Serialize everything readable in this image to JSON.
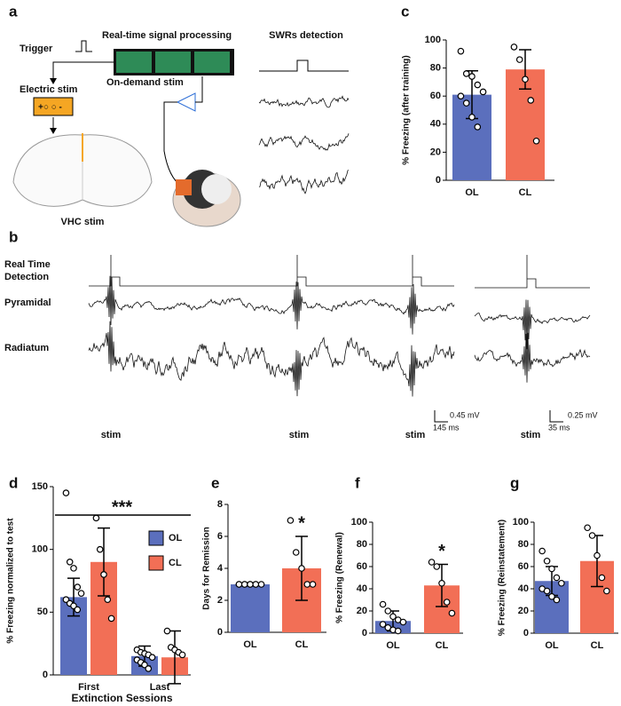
{
  "panel_a": {
    "label": "a",
    "trigger": "Trigger",
    "processing": "Real-time signal processing",
    "detection": "SWRs detection",
    "electric_stim": "Electric stim",
    "on_demand": "On-demand stim",
    "vhc": "VHC stim"
  },
  "panel_b": {
    "label": "b",
    "detection": [
      "Real Time",
      "Detection"
    ],
    "pyramidal": "Pyramidal",
    "radiatum": "Radiatum",
    "stim": [
      "stim",
      "stim",
      "stim",
      "stim"
    ],
    "scale_main": {
      "voltage": "0.45 mV",
      "time": "145 ms"
    },
    "scale_inset": {
      "voltage": "0.25 mV",
      "time": "35 ms"
    }
  },
  "chart_data": [
    {
      "type": "bar",
      "panel": "c",
      "ylabel": "% Freezing (after training)",
      "categories": [
        "OL",
        "CL"
      ],
      "colors": [
        "#5b6fbd",
        "#f26f56"
      ],
      "values": [
        61,
        79
      ],
      "errors": [
        17,
        14
      ],
      "points": [
        [
          92,
          76,
          74,
          68,
          63,
          60,
          55,
          45,
          38
        ],
        [
          95,
          86,
          72,
          57,
          28
        ]
      ],
      "ylim": [
        0,
        100
      ],
      "yticks": [
        0,
        20,
        40,
        60,
        80,
        100
      ]
    },
    {
      "type": "bar",
      "panel": "d",
      "ylabel": "% Freezing normalized to test",
      "xlabel": "Extinction Sessions",
      "annotation": "***",
      "categories": [
        "First",
        "Last"
      ],
      "legend": "right",
      "series": [
        {
          "name": "OL",
          "color": "#5b6fbd",
          "values": [
            62,
            15
          ],
          "errors": [
            15,
            8
          ],
          "points": [
            [
              145,
              90,
              85,
              70,
              65,
              60,
              57,
              55,
              52
            ],
            [
              20,
              18,
              17,
              16,
              14,
              12,
              10,
              8,
              5
            ]
          ]
        },
        {
          "name": "CL",
          "color": "#f26f56",
          "values": [
            90,
            14
          ],
          "errors": [
            27,
            21
          ],
          "points": [
            [
              125,
              100,
              80,
              60,
              45
            ],
            [
              35,
              22,
              20,
              18,
              16
            ]
          ]
        }
      ],
      "ylim": [
        0,
        150
      ],
      "yticks": [
        0,
        50,
        100,
        150
      ]
    },
    {
      "type": "bar",
      "panel": "e",
      "ylabel": "Days for Remission",
      "annotation": "*",
      "categories": [
        "OL",
        "CL"
      ],
      "colors": [
        "#5b6fbd",
        "#f26f56"
      ],
      "values": [
        3,
        4
      ],
      "errors": [
        0.1,
        2
      ],
      "points": [
        [
          3,
          3,
          3,
          3,
          3,
          3,
          3,
          3,
          3
        ],
        [
          7,
          5,
          4,
          3,
          3
        ]
      ],
      "ylim": [
        0,
        8
      ],
      "yticks": [
        0,
        2,
        4,
        6,
        8
      ]
    },
    {
      "type": "bar",
      "panel": "f",
      "ylabel": "% Freezing (Renewal)",
      "annotation": "*",
      "categories": [
        "OL",
        "CL"
      ],
      "colors": [
        "#5b6fbd",
        "#f26f56"
      ],
      "values": [
        11,
        43
      ],
      "errors": [
        9,
        19
      ],
      "points": [
        [
          26,
          20,
          15,
          12,
          10,
          8,
          5,
          3,
          2
        ],
        [
          64,
          60,
          45,
          28,
          18
        ]
      ],
      "ylim": [
        0,
        100
      ],
      "yticks": [
        0,
        20,
        40,
        60,
        80,
        100
      ]
    },
    {
      "type": "bar",
      "panel": "g",
      "ylabel": "% Freezing (Reinstatement)",
      "categories": [
        "OL",
        "CL"
      ],
      "colors": [
        "#5b6fbd",
        "#f26f56"
      ],
      "values": [
        47,
        65
      ],
      "errors": [
        13,
        23
      ],
      "points": [
        [
          74,
          65,
          58,
          50,
          45,
          40,
          38,
          33,
          30
        ],
        [
          95,
          88,
          70,
          50,
          38
        ]
      ],
      "ylim": [
        0,
        100
      ],
      "yticks": [
        0,
        20,
        40,
        60,
        80,
        100
      ]
    }
  ]
}
